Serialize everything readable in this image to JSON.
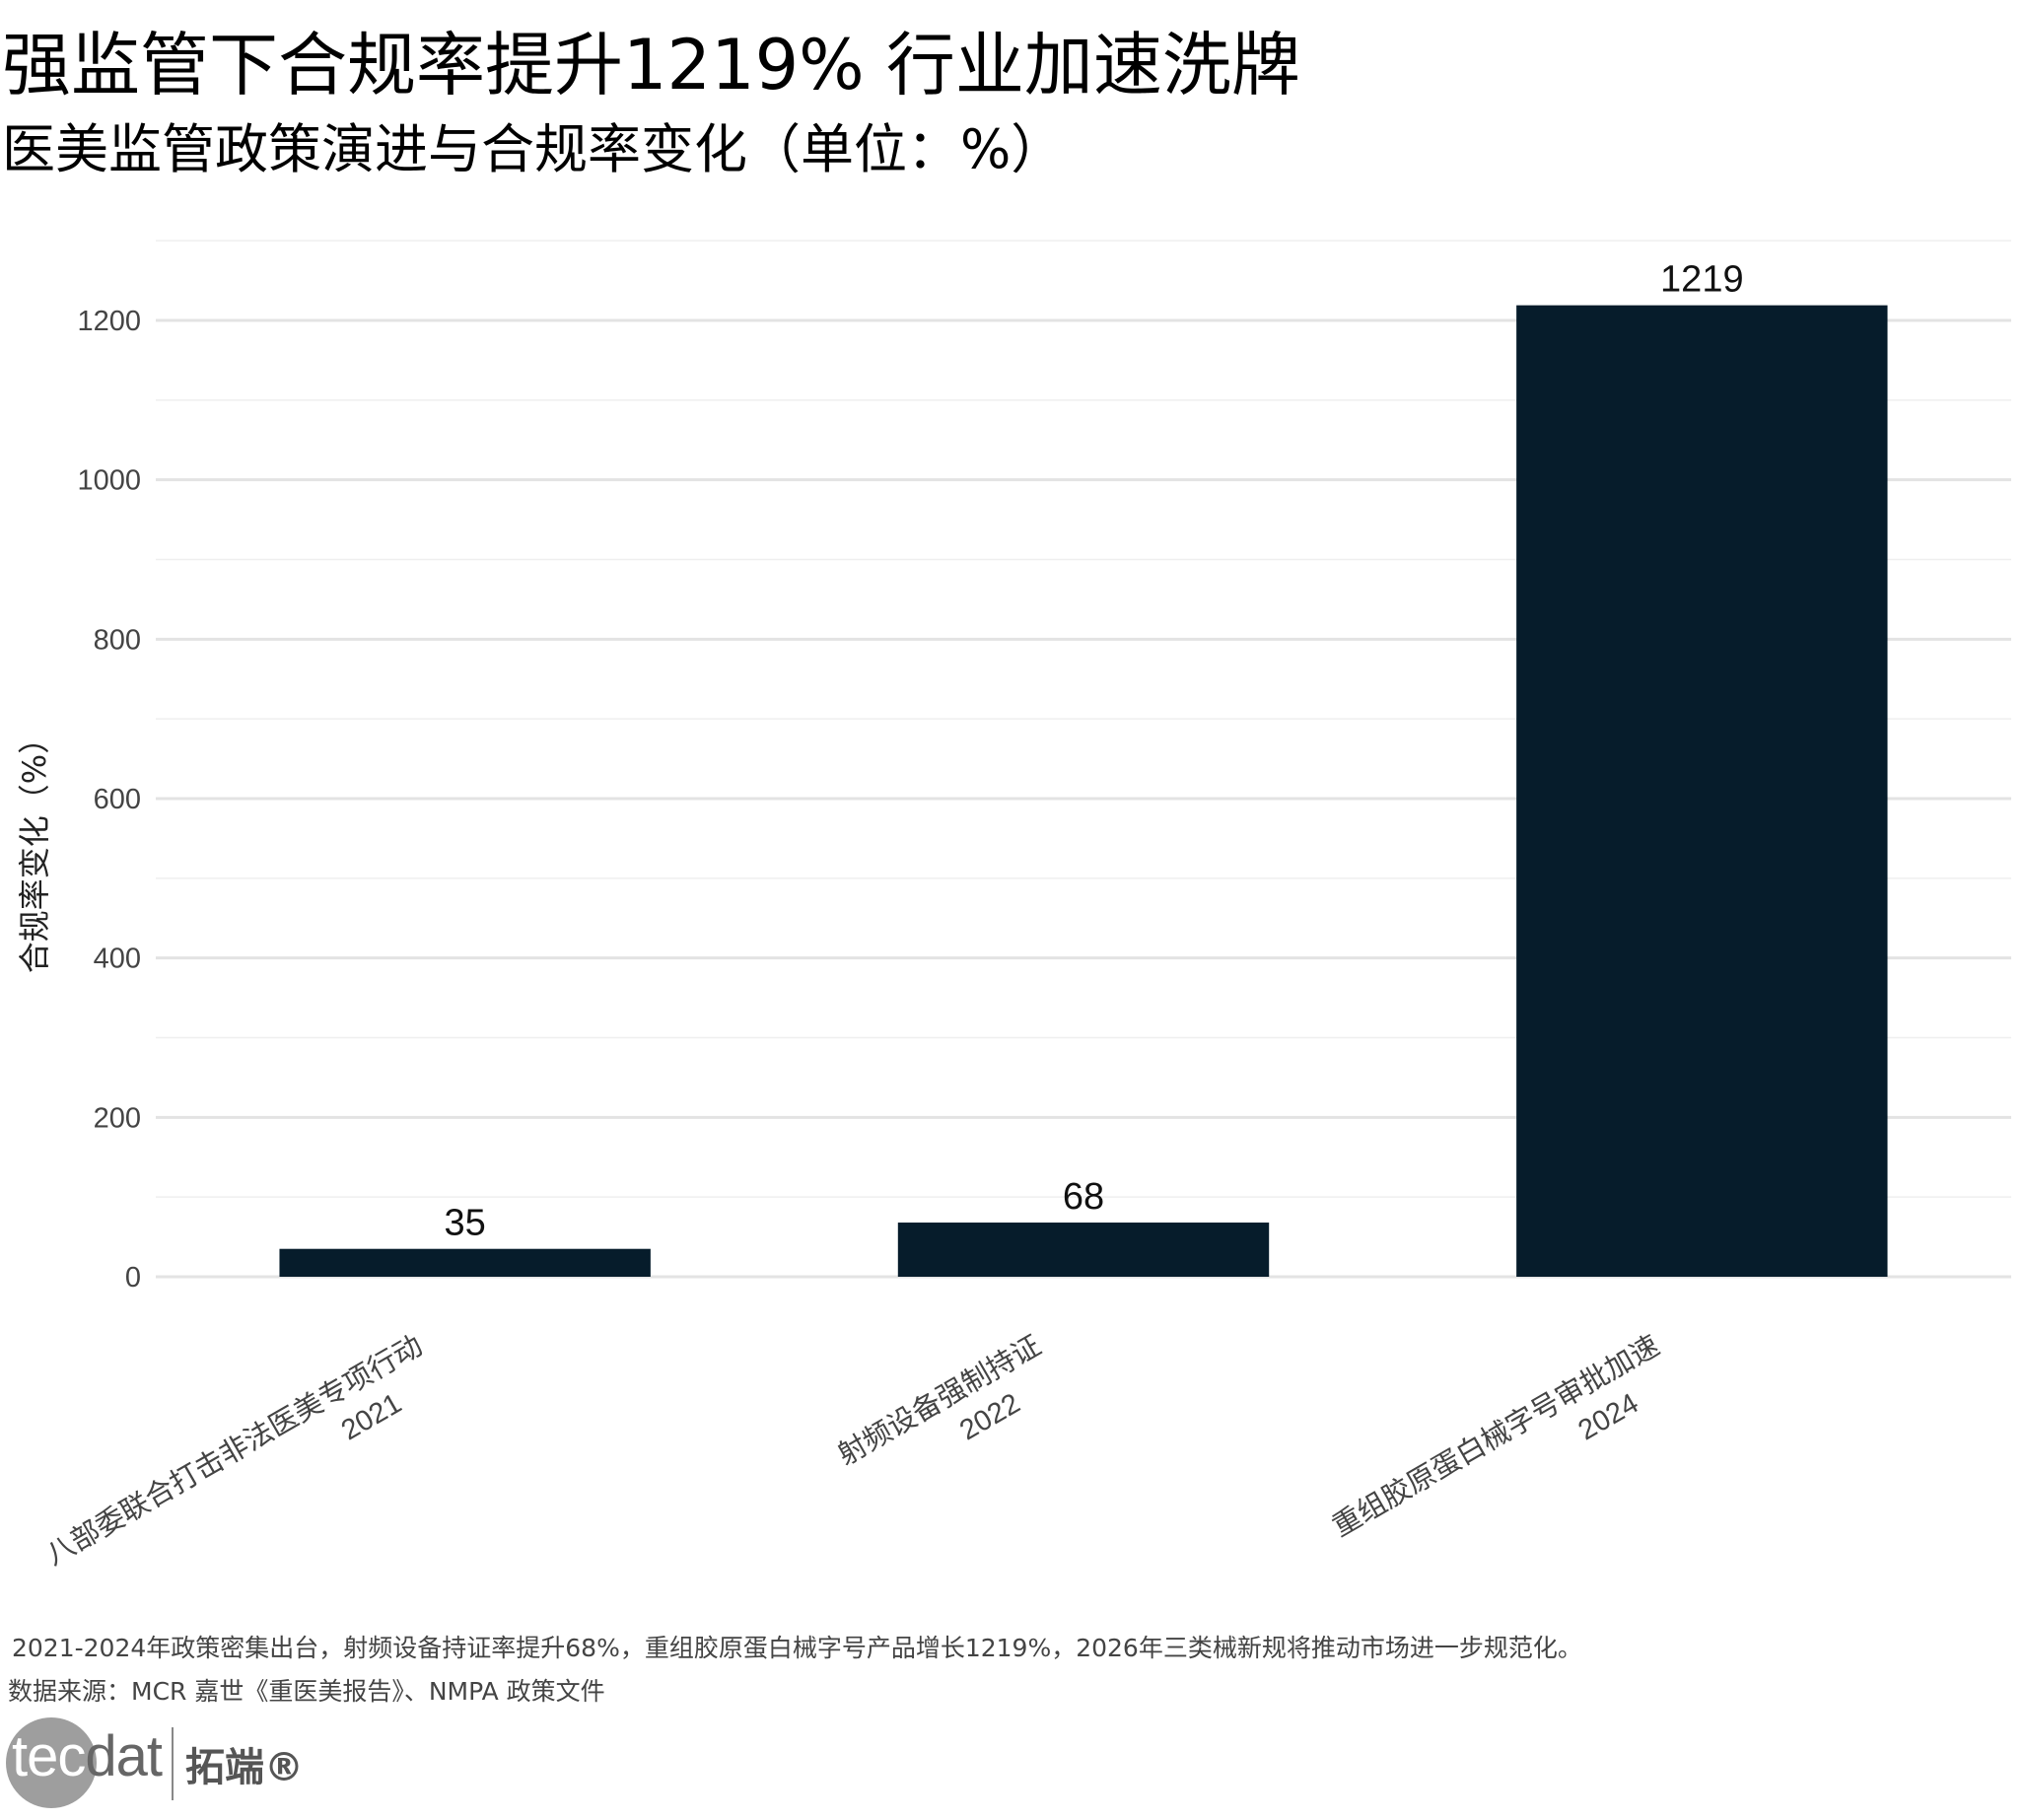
{
  "title": "强监管下合规率提升1219% 行业加速洗牌",
  "subtitle": "医美监管政策演进与合规率变化（单位：%）",
  "chart_data": {
    "type": "bar",
    "categories": [
      {
        "policy": "八部委联合打击非法医美专项行动",
        "year": "2021"
      },
      {
        "policy": "射频设备强制持证",
        "year": "2022"
      },
      {
        "policy": "重组胶原蛋白械字号审批加速",
        "year": "2024"
      }
    ],
    "values": [
      35,
      68,
      1219
    ],
    "data_labels": [
      "35",
      "68",
      "1219"
    ],
    "ylabel": "合规率变化（%）",
    "ylim": [
      0,
      1300
    ],
    "yticks": [
      0,
      200,
      400,
      600,
      800,
      1000,
      1200
    ],
    "ytick_labels": [
      "0",
      "200",
      "400",
      "600",
      "800",
      "1000",
      "1200"
    ],
    "bar_color": "#061c2b",
    "grid": true,
    "legend": "none"
  },
  "caption": "2021-2024年政策密集出台，射频设备持证率提升68%，重组胶原蛋白械字号产品增长1219%，2026年三类械新规将推动市场进一步规范化。",
  "source": "数据来源：MCR 嘉世《重医美报告》、NMPA 政策文件",
  "logo": {
    "en_part1": "tec",
    "en_part2": "dat",
    "cn": "拓端®"
  }
}
